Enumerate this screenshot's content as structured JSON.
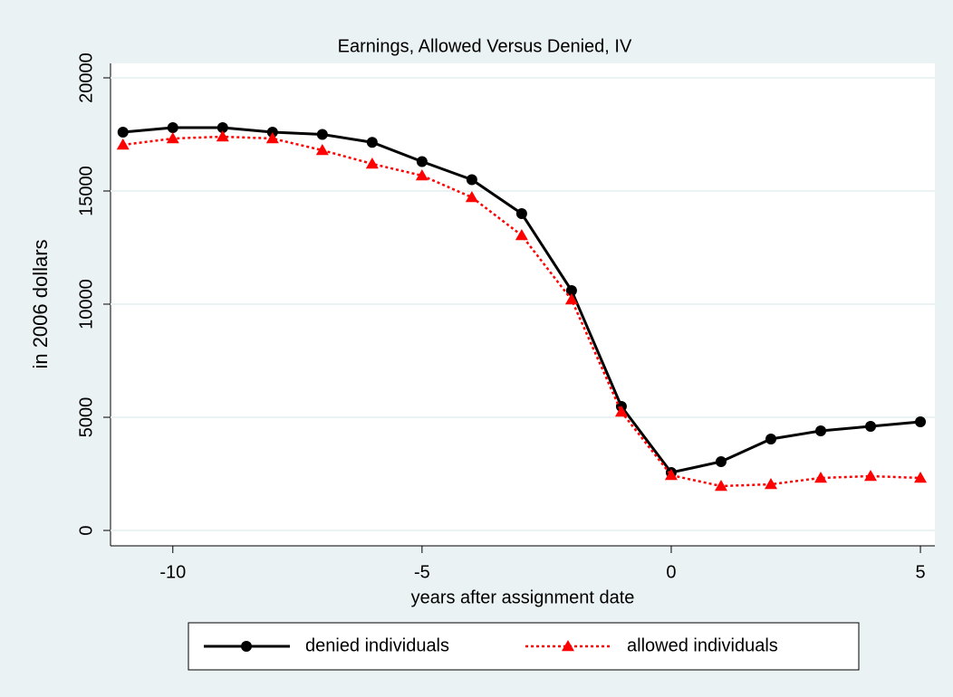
{
  "chart_data": {
    "type": "line",
    "title": "Earnings, Allowed Versus Denied, IV",
    "x_label": "years after assignment date",
    "y_label": "in 2006 dollars",
    "x": [
      -11,
      -10,
      -9,
      -8,
      -7,
      -6,
      -5,
      -4,
      -3,
      -2,
      -1,
      0,
      1,
      2,
      3,
      4,
      5
    ],
    "series": [
      {
        "name": "denied individuals",
        "color": "#000000",
        "style": "solid",
        "marker": "circle",
        "values": [
          17600,
          17800,
          17800,
          17600,
          17500,
          17150,
          16300,
          15500,
          14000,
          10600,
          5480,
          2560,
          3040,
          4040,
          4400,
          4600,
          4800
        ]
      },
      {
        "name": "allowed individuals",
        "color": "#ff0000",
        "style": "dotted",
        "marker": "triangle",
        "values": [
          17040,
          17320,
          17400,
          17320,
          16800,
          16200,
          15680,
          14720,
          13040,
          10200,
          5240,
          2440,
          1960,
          2040,
          2320,
          2400,
          2320
        ]
      }
    ],
    "xlim": [
      -11.25,
      5.29
    ],
    "xticks": [
      -10,
      -5,
      0,
      5
    ],
    "ylim": [
      -680,
      20640
    ],
    "yticks": [
      0,
      5000,
      10000,
      15000,
      20000
    ],
    "grid": true,
    "legend": "bottom"
  }
}
